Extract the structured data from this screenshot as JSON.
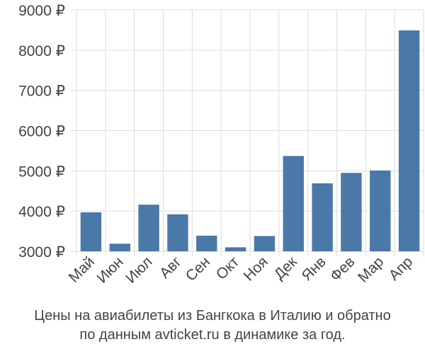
{
  "chart_data": {
    "type": "bar",
    "categories": [
      "Май",
      "Июн",
      "Июл",
      "Авг",
      "Сен",
      "Окт",
      "Ноя",
      "Дек",
      "Янв",
      "Фев",
      "Мар",
      "Апр"
    ],
    "values": [
      3970,
      3190,
      4160,
      3920,
      3390,
      3100,
      3380,
      5370,
      4690,
      4950,
      5010,
      8490
    ],
    "ylim": [
      3000,
      9000
    ],
    "yticks": [
      3000,
      4000,
      5000,
      6000,
      7000,
      8000,
      9000
    ],
    "ytick_labels": [
      "3000 ₽",
      "4000 ₽",
      "5000 ₽",
      "6000 ₽",
      "7000 ₽",
      "8000 ₽",
      "9000 ₽"
    ],
    "grid": true,
    "bar_color": "#4a78a8"
  },
  "caption": {
    "line1": "Цены на авиабилеты из Бангкока в Италию и обратно",
    "line2": "по данным avticket.ru в динамике за год."
  }
}
